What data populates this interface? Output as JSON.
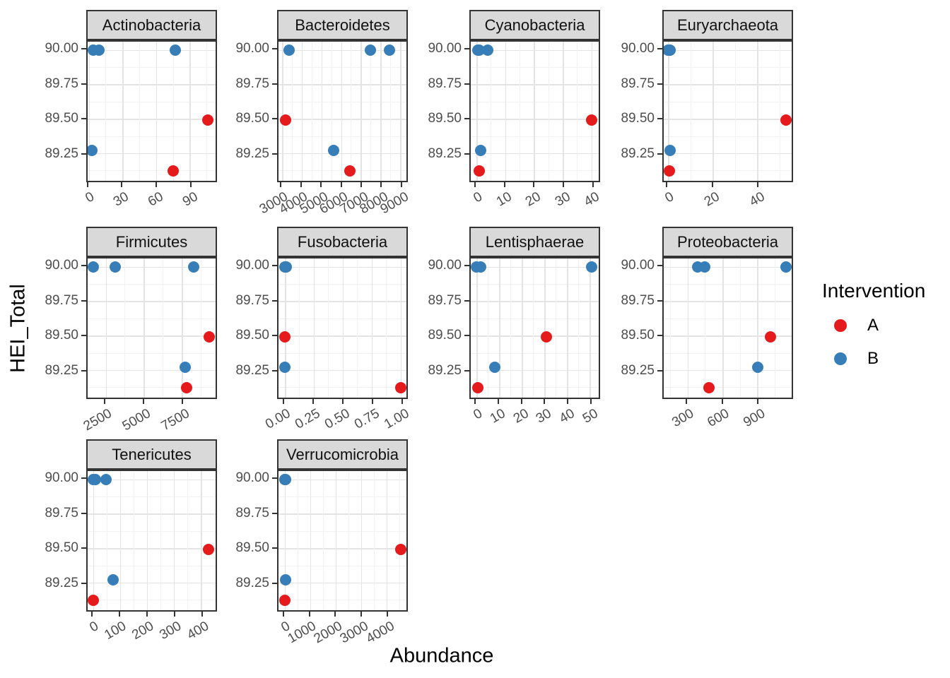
{
  "chart_data": {
    "type": "scatter",
    "faceted": true,
    "title": "",
    "xlabel": "Abundance",
    "ylabel": "HEI_Total",
    "grid": "on",
    "legend": {
      "title": "Intervention",
      "position": "right",
      "entries": [
        {
          "label": "A",
          "color": "#E41A1C"
        },
        {
          "label": "B",
          "color": "#377EB8"
        }
      ]
    },
    "y_axis": {
      "domain": [
        89.05,
        90.06
      ],
      "ticks": [
        {
          "v": 90.0,
          "label": "90.00"
        },
        {
          "v": 89.75,
          "label": "89.75"
        },
        {
          "v": 89.5,
          "label": "89.50"
        },
        {
          "v": 89.25,
          "label": "89.25"
        }
      ]
    },
    "facets": [
      {
        "name": "Actinobacteria",
        "x_domain": [
          -1,
          113
        ],
        "x_ticks": [
          {
            "v": 0,
            "label": "0"
          },
          {
            "v": 30,
            "label": "30"
          },
          {
            "v": 60,
            "label": "60"
          },
          {
            "v": 90,
            "label": "90"
          }
        ],
        "points": [
          {
            "x": 4,
            "y": 90.0,
            "group": "B"
          },
          {
            "x": 9,
            "y": 90.0,
            "group": "B"
          },
          {
            "x": 77,
            "y": 90.0,
            "group": "B"
          },
          {
            "x": 3,
            "y": 89.27,
            "group": "B"
          },
          {
            "x": 106,
            "y": 89.49,
            "group": "A"
          },
          {
            "x": 75,
            "y": 89.12,
            "group": "A"
          }
        ]
      },
      {
        "name": "Bacteroidetes",
        "x_domain": [
          2820,
          9320
        ],
        "x_ticks": [
          {
            "v": 3000,
            "label": "3000"
          },
          {
            "v": 4000,
            "label": "4000"
          },
          {
            "v": 5000,
            "label": "5000"
          },
          {
            "v": 6000,
            "label": "6000"
          },
          {
            "v": 7000,
            "label": "7000"
          },
          {
            "v": 8000,
            "label": "8000"
          },
          {
            "v": 9000,
            "label": "9000"
          }
        ],
        "points": [
          {
            "x": 3350,
            "y": 90.0,
            "group": "B"
          },
          {
            "x": 7500,
            "y": 90.0,
            "group": "B"
          },
          {
            "x": 8470,
            "y": 90.0,
            "group": "B"
          },
          {
            "x": 5630,
            "y": 89.27,
            "group": "B"
          },
          {
            "x": 3170,
            "y": 89.49,
            "group": "A"
          },
          {
            "x": 6440,
            "y": 89.12,
            "group": "A"
          }
        ]
      },
      {
        "name": "Cyanobacteria",
        "x_domain": [
          -2,
          42.5
        ],
        "x_ticks": [
          {
            "v": 0,
            "label": "0"
          },
          {
            "v": 10,
            "label": "10"
          },
          {
            "v": 20,
            "label": "20"
          },
          {
            "v": 30,
            "label": "30"
          },
          {
            "v": 40,
            "label": "40"
          }
        ],
        "points": [
          {
            "x": 0.5,
            "y": 90.0,
            "group": "B"
          },
          {
            "x": 4,
            "y": 90.0,
            "group": "B"
          },
          {
            "x": 1,
            "y": 90.0,
            "group": "B"
          },
          {
            "x": 1.5,
            "y": 89.27,
            "group": "B"
          },
          {
            "x": 40,
            "y": 89.49,
            "group": "A"
          },
          {
            "x": 1,
            "y": 89.12,
            "group": "A"
          }
        ]
      },
      {
        "name": "Euryarchaeota",
        "x_domain": [
          -2,
          55.5
        ],
        "x_ticks": [
          {
            "v": 0,
            "label": "0"
          },
          {
            "v": 20,
            "label": "20"
          },
          {
            "v": 40,
            "label": "40"
          }
        ],
        "points": [
          {
            "x": 0,
            "y": 90.0,
            "group": "B"
          },
          {
            "x": 0.5,
            "y": 90.0,
            "group": "B"
          },
          {
            "x": 1,
            "y": 90.0,
            "group": "B"
          },
          {
            "x": 1,
            "y": 89.27,
            "group": "B"
          },
          {
            "x": 53,
            "y": 89.49,
            "group": "A"
          },
          {
            "x": 0.5,
            "y": 89.12,
            "group": "A"
          }
        ]
      },
      {
        "name": "Firmicutes",
        "x_domain": [
          1310,
          9730
        ],
        "x_ticks": [
          {
            "v": 2500,
            "label": "2500"
          },
          {
            "v": 5000,
            "label": "5000"
          },
          {
            "v": 7500,
            "label": "7500"
          }
        ],
        "points": [
          {
            "x": 1680,
            "y": 90.0,
            "group": "B"
          },
          {
            "x": 3140,
            "y": 90.0,
            "group": "B"
          },
          {
            "x": 8270,
            "y": 90.0,
            "group": "B"
          },
          {
            "x": 7730,
            "y": 89.27,
            "group": "B"
          },
          {
            "x": 9300,
            "y": 89.49,
            "group": "A"
          },
          {
            "x": 7820,
            "y": 89.12,
            "group": "A"
          }
        ]
      },
      {
        "name": "Fusobacteria",
        "x_domain": [
          -0.055,
          1.05
        ],
        "x_ticks": [
          {
            "v": 0,
            "label": "0.00"
          },
          {
            "v": 0.25,
            "label": "0.25"
          },
          {
            "v": 0.5,
            "label": "0.50"
          },
          {
            "v": 0.75,
            "label": "0.75"
          },
          {
            "v": 1,
            "label": "1.00"
          }
        ],
        "points": [
          {
            "x": 0,
            "y": 90.0,
            "group": "B"
          },
          {
            "x": 0.005,
            "y": 90.0,
            "group": "B"
          },
          {
            "x": 0.01,
            "y": 90.0,
            "group": "B"
          },
          {
            "x": 0,
            "y": 89.27,
            "group": "B"
          },
          {
            "x": 0,
            "y": 89.49,
            "group": "A"
          },
          {
            "x": 1,
            "y": 89.12,
            "group": "A"
          }
        ]
      },
      {
        "name": "Lentisphaerae",
        "x_domain": [
          -2.5,
          54
        ],
        "x_ticks": [
          {
            "v": 0,
            "label": "0"
          },
          {
            "v": 10,
            "label": "10"
          },
          {
            "v": 20,
            "label": "20"
          },
          {
            "v": 30,
            "label": "30"
          },
          {
            "v": 40,
            "label": "40"
          },
          {
            "v": 50,
            "label": "50"
          }
        ],
        "points": [
          {
            "x": 0,
            "y": 90.0,
            "group": "B"
          },
          {
            "x": 2,
            "y": 90.0,
            "group": "B"
          },
          {
            "x": 51,
            "y": 90.0,
            "group": "B"
          },
          {
            "x": 8,
            "y": 89.27,
            "group": "B"
          },
          {
            "x": 31,
            "y": 89.49,
            "group": "A"
          },
          {
            "x": 0.5,
            "y": 89.12,
            "group": "A"
          }
        ]
      },
      {
        "name": "Proteobacteria",
        "x_domain": [
          95,
          1195
        ],
        "x_ticks": [
          {
            "v": 300,
            "label": "300"
          },
          {
            "v": 600,
            "label": "600"
          },
          {
            "v": 900,
            "label": "900"
          }
        ],
        "points": [
          {
            "x": 385,
            "y": 90.0,
            "group": "B"
          },
          {
            "x": 445,
            "y": 90.0,
            "group": "B"
          },
          {
            "x": 1145,
            "y": 90.0,
            "group": "B"
          },
          {
            "x": 905,
            "y": 89.27,
            "group": "B"
          },
          {
            "x": 1010,
            "y": 89.49,
            "group": "A"
          },
          {
            "x": 485,
            "y": 89.12,
            "group": "A"
          }
        ]
      },
      {
        "name": "Tenericutes",
        "x_domain": [
          -20,
          455
        ],
        "x_ticks": [
          {
            "v": 0,
            "label": "0"
          },
          {
            "v": 100,
            "label": "100"
          },
          {
            "v": 200,
            "label": "200"
          },
          {
            "v": 300,
            "label": "300"
          },
          {
            "v": 400,
            "label": "400"
          }
        ],
        "points": [
          {
            "x": 0,
            "y": 90.0,
            "group": "B"
          },
          {
            "x": 10,
            "y": 90.0,
            "group": "B"
          },
          {
            "x": 48,
            "y": 90.0,
            "group": "B"
          },
          {
            "x": 75,
            "y": 89.27,
            "group": "B"
          },
          {
            "x": 430,
            "y": 89.49,
            "group": "A"
          },
          {
            "x": 2,
            "y": 89.12,
            "group": "A"
          }
        ]
      },
      {
        "name": "Verrucomicrobia",
        "x_domain": [
          -240,
          4790
        ],
        "x_ticks": [
          {
            "v": 0,
            "label": "0"
          },
          {
            "v": 1000,
            "label": "1000"
          },
          {
            "v": 2000,
            "label": "2000"
          },
          {
            "v": 3000,
            "label": "3000"
          },
          {
            "v": 4000,
            "label": "4000"
          }
        ],
        "points": [
          {
            "x": 10,
            "y": 90.0,
            "group": "B"
          },
          {
            "x": 20,
            "y": 90.0,
            "group": "B"
          },
          {
            "x": 30,
            "y": 90.0,
            "group": "B"
          },
          {
            "x": 50,
            "y": 89.27,
            "group": "B"
          },
          {
            "x": 4580,
            "y": 89.49,
            "group": "A"
          },
          {
            "x": 20,
            "y": 89.12,
            "group": "A"
          }
        ]
      }
    ]
  }
}
